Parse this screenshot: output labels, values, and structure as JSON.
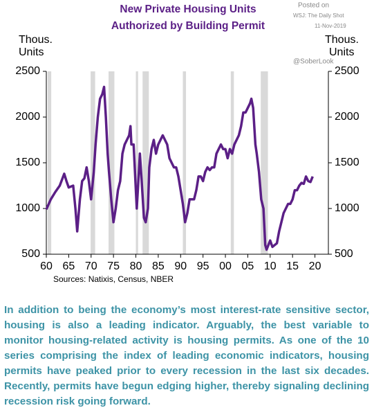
{
  "chart_data": {
    "type": "line",
    "title": [
      "New Private Housing Units",
      "Authorized by Building Permit"
    ],
    "y_label": [
      "Thous.",
      "Units"
    ],
    "y2_label": [
      "Thous.",
      "Units"
    ],
    "annotations": [
      "Posted on",
      "WSJ: The Daily Shot",
      "11-Nov-2019",
      "@SoberLook"
    ],
    "source": "Sources:  Natixis, Census,  NBER",
    "xlim": [
      1960,
      2023
    ],
    "xticks": [
      {
        "value": 1960,
        "label": "60"
      },
      {
        "value": 1965,
        "label": "65"
      },
      {
        "value": 1970,
        "label": "70"
      },
      {
        "value": 1975,
        "label": "75"
      },
      {
        "value": 1980,
        "label": "80"
      },
      {
        "value": 1985,
        "label": "85"
      },
      {
        "value": 1990,
        "label": "90"
      },
      {
        "value": 1995,
        "label": "95"
      },
      {
        "value": 2000,
        "label": "00"
      },
      {
        "value": 2005,
        "label": "05"
      },
      {
        "value": 2010,
        "label": "10"
      },
      {
        "value": 2015,
        "label": "15"
      },
      {
        "value": 2020,
        "label": "20"
      }
    ],
    "ylim": [
      500,
      2500
    ],
    "yticks": [
      500,
      1000,
      1500,
      2000,
      2500
    ],
    "y2lim": [
      500,
      2500
    ],
    "y2ticks": [
      500,
      1000,
      1500,
      2000,
      2500
    ],
    "recessions": [
      [
        1960.3,
        1961.1
      ],
      [
        1969.9,
        1970.9
      ],
      [
        1973.9,
        1975.2
      ],
      [
        1980.0,
        1980.5
      ],
      [
        1981.5,
        1982.9
      ],
      [
        1990.5,
        1991.2
      ],
      [
        2001.2,
        2001.9
      ],
      [
        2007.9,
        2009.5
      ]
    ],
    "recession_color": "#d9d9d9",
    "x": [
      1960,
      1961,
      1962,
      1963,
      1964,
      1964.5,
      1965,
      1966,
      1966.5,
      1966.9,
      1967.5,
      1968,
      1968.5,
      1969,
      1969.5,
      1970,
      1970.6,
      1971,
      1971.5,
      1972,
      1972.5,
      1972.9,
      1973.3,
      1973.7,
      1974,
      1974.5,
      1975,
      1975.5,
      1976,
      1976.5,
      1977,
      1977.5,
      1978,
      1978.5,
      1978.8,
      1979,
      1979.5,
      1979.8,
      1980.2,
      1980.5,
      1980.9,
      1981.3,
      1981.8,
      1982.2,
      1982.7,
      1983,
      1983.5,
      1984,
      1984.5,
      1985,
      1985.5,
      1986,
      1986.5,
      1987,
      1987.5,
      1988,
      1988.5,
      1989,
      1989.5,
      1990,
      1990.5,
      1991,
      1991.5,
      1992,
      1992.5,
      1993,
      1993.5,
      1994,
      1994.5,
      1995,
      1995.5,
      1996,
      1996.5,
      1997,
      1997.5,
      1998,
      1998.5,
      1999,
      1999.5,
      2000,
      2000.5,
      2001,
      2001.5,
      2002,
      2002.5,
      2003,
      2003.5,
      2004,
      2004.5,
      2005,
      2005.5,
      2005.8,
      2006.2,
      2006.7,
      2007,
      2007.5,
      2008,
      2008.5,
      2008.9,
      2009.2,
      2009.6,
      2010,
      2010.5,
      2011,
      2011.5,
      2012,
      2012.5,
      2013,
      2013.5,
      2014,
      2014.5,
      2015,
      2015.5,
      2016,
      2016.5,
      2017,
      2017.5,
      2018,
      2018.5,
      2019,
      2019.5
    ],
    "series": [
      {
        "name": "Building permits",
        "color": "#5b1f86",
        "values": [
          990,
          1100,
          1180,
          1250,
          1380,
          1300,
          1230,
          1250,
          1000,
          750,
          1100,
          1300,
          1330,
          1450,
          1300,
          1100,
          1400,
          1700,
          2000,
          2200,
          2250,
          2330,
          2000,
          1600,
          1400,
          1100,
          850,
          1000,
          1200,
          1300,
          1600,
          1700,
          1750,
          1800,
          1900,
          1700,
          1700,
          1400,
          1000,
          1250,
          1600,
          1300,
          900,
          850,
          1000,
          1450,
          1650,
          1750,
          1600,
          1700,
          1750,
          1800,
          1750,
          1700,
          1550,
          1500,
          1450,
          1450,
          1350,
          1200,
          1050,
          850,
          950,
          1100,
          1100,
          1100,
          1200,
          1350,
          1350,
          1300,
          1400,
          1450,
          1420,
          1450,
          1450,
          1600,
          1650,
          1700,
          1650,
          1650,
          1550,
          1650,
          1600,
          1700,
          1750,
          1800,
          1900,
          2050,
          2050,
          2100,
          2150,
          2200,
          2100,
          1700,
          1600,
          1400,
          1100,
          1000,
          600,
          550,
          600,
          650,
          580,
          600,
          620,
          750,
          850,
          950,
          1000,
          1050,
          1050,
          1100,
          1200,
          1200,
          1250,
          1280,
          1270,
          1350,
          1300,
          1290,
          1350
        ]
      }
    ]
  },
  "body_text": "In addition to being the economy’s most interest-rate sensitive sector, housing is also a leading indicator. Arguably, the best variable to monitor housing-related activity is housing permits. As one of the 10 series comprising the index of leading economic indicators, housing permits have peaked prior to every recession in the last six decades. Recently, permits have begun edging higher, thereby signaling declining recession risk going forward."
}
